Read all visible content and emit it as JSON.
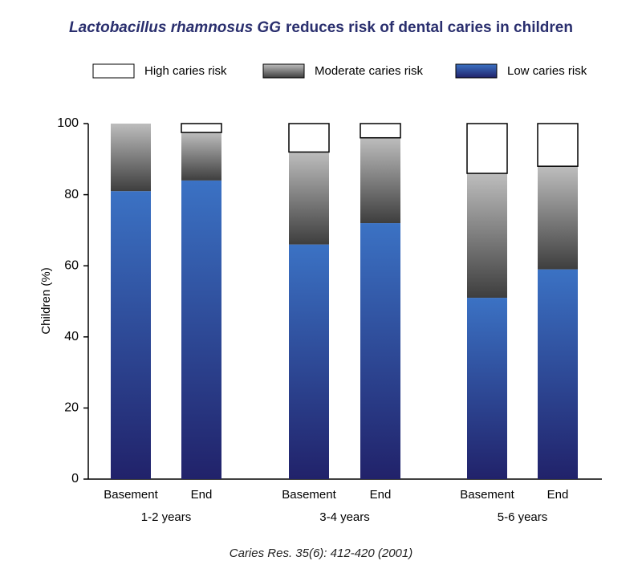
{
  "chart_data": {
    "type": "stacked-bar",
    "title": [
      "Lactobacillus rhamnosus GG",
      "reduces risk of dental caries in children"
    ],
    "y_label": "Children (%)",
    "source": "Caries Res. 35(6): 412-420 (2001)",
    "categories": [
      "Basement",
      "End",
      "Basement",
      "End",
      "Basement",
      "End"
    ],
    "groups": [
      "1-2 years",
      "3-4 years",
      "5-6 years"
    ],
    "series": [
      {
        "name": "High caries risk",
        "color": [
          "#ffffff",
          "#ffffff"
        ],
        "values": [
          0,
          2.5,
          8,
          4,
          14,
          12
        ]
      },
      {
        "name": "Moderate caries risk",
        "color": [
          "#bdbdbd",
          "#3e3e3e"
        ],
        "values": [
          19,
          13.5,
          26,
          24,
          35,
          29
        ]
      },
      {
        "name": "Low caries risk",
        "color": [
          "#3b72c4",
          "#21226a"
        ],
        "values": [
          81,
          84,
          66,
          72,
          51,
          59
        ]
      }
    ],
    "ylim": [
      0,
      100
    ],
    "yticks": [
      0,
      20,
      40,
      60,
      80,
      100
    ]
  }
}
